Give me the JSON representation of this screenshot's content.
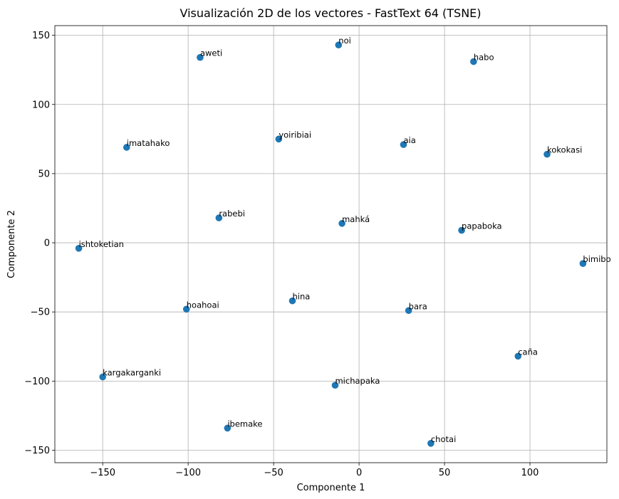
{
  "chart_data": {
    "type": "scatter",
    "title": "Visualización 2D de los vectores - FastText 64 (TSNE)",
    "xlabel": "Componente 1",
    "ylabel": "Componente 2",
    "xlim": [
      -178,
      145
    ],
    "ylim": [
      -159,
      157
    ],
    "xticks": [
      -150,
      -100,
      -50,
      0,
      50,
      100
    ],
    "yticks": [
      -150,
      -100,
      -50,
      0,
      50,
      100,
      150
    ],
    "grid": true,
    "color": "#1f77b4",
    "points": [
      {
        "label": "noi",
        "x": -12,
        "y": 143
      },
      {
        "label": "aweti",
        "x": -93,
        "y": 134
      },
      {
        "label": "habo",
        "x": 67,
        "y": 131
      },
      {
        "label": "yoiribiai",
        "x": -47,
        "y": 75
      },
      {
        "label": "aia",
        "x": 26,
        "y": 71
      },
      {
        "label": "imatahako",
        "x": -136,
        "y": 69
      },
      {
        "label": "kokokasi",
        "x": 110,
        "y": 64
      },
      {
        "label": "rabebi",
        "x": -82,
        "y": 18
      },
      {
        "label": "mahká",
        "x": -10,
        "y": 14
      },
      {
        "label": "papaboka",
        "x": 60,
        "y": 9
      },
      {
        "label": "ishtoketian",
        "x": -164,
        "y": -4
      },
      {
        "label": "bimibo",
        "x": 131,
        "y": -15
      },
      {
        "label": "hina",
        "x": -39,
        "y": -42
      },
      {
        "label": "hoahoai",
        "x": -101,
        "y": -48
      },
      {
        "label": "bara",
        "x": 29,
        "y": -49
      },
      {
        "label": "caña",
        "x": 93,
        "y": -82
      },
      {
        "label": "kargakarganki",
        "x": -150,
        "y": -97
      },
      {
        "label": "michapaka",
        "x": -14,
        "y": -103
      },
      {
        "label": "ibemake",
        "x": -77,
        "y": -134
      },
      {
        "label": "chotai",
        "x": 42,
        "y": -145
      }
    ]
  }
}
